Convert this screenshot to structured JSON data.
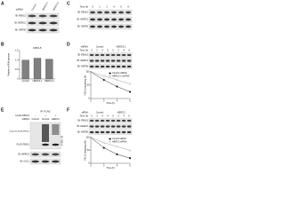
{
  "panel_a": {
    "letter": "A",
    "group_label": "shRNA",
    "lanes": [
      "Control",
      "HERC2-1",
      "HERC2-2"
    ],
    "rows": [
      "IB: FBXL5",
      "IB: HERC2",
      "IB: HSP90"
    ]
  },
  "panel_b": {
    "letter": "B",
    "title": "FBXL5",
    "y_label": "Relative mRNA amount",
    "y_range": [
      0,
      1.5
    ],
    "y_ticks": [
      0,
      0.5,
      {
        "value": 1,
        "label": "1.0"
      },
      1.5
    ],
    "categories": [
      "Control",
      "HERC2-1",
      "HERC2-2"
    ],
    "values": [
      1.0,
      1.1,
      1.05
    ],
    "color": "#808080"
  },
  "panel_c": {
    "letter": "C",
    "group_label": "Time (h)",
    "lanes": [
      "0",
      "1",
      "2",
      "4",
      "6",
      "8"
    ],
    "rows": [
      "IB: FBXL5",
      "IB: HERC2",
      "IB: HSP90"
    ]
  },
  "panel_d": {
    "letter": "D",
    "group_label": "shRNA",
    "groups": [
      "Control",
      "HERC2-1"
    ],
    "time_label": "Time (h)",
    "lanes": [
      "0",
      "2",
      "4",
      "6",
      "0",
      "2",
      "4",
      "6"
    ],
    "rows": [
      "IB: FBXL5",
      "IB: HERC2",
      "IB: HSP90"
    ],
    "graph": {
      "x_label": "Time (h)",
      "y_label": "FBXL5 remaining (%)",
      "x_range": [
        0,
        6
      ],
      "y_range": [
        0,
        100
      ],
      "x_ticks": [
        0,
        2,
        4,
        6
      ],
      "y_ticks": [
        0,
        50,
        100
      ],
      "time": [
        0,
        2,
        4,
        6
      ],
      "series": [
        {
          "name": "Control shRNA",
          "color": "#000000",
          "values": [
            100,
            70,
            45,
            25
          ]
        },
        {
          "name": "HERC2-1 shRNA",
          "color": "#888888",
          "values": [
            100,
            85,
            70,
            55
          ]
        }
      ]
    }
  },
  "panel_e": {
    "letter": "E",
    "header": "IP: FLAG",
    "conditions": [
      {
        "label": "FLAG-FBXL5",
        "values": [
          "−",
          "+",
          "+"
        ]
      },
      {
        "label": "shRNA",
        "values": [
          "Control",
          "Control",
          "HERC2"
        ]
      }
    ],
    "smear_labels": [
      "Ubiquitin-FLAG-FBXL5",
      "FLAG-FBXL5"
    ],
    "smear_blot": "IB: FBXL5",
    "rows": [
      "IB: HERC2",
      "IB: CUL1"
    ]
  },
  "panel_f": {
    "letter": "F",
    "group_label": "siRNA",
    "groups": [
      "Control",
      "HERC2"
    ],
    "time_label": "Time (h)",
    "lanes": [
      "0",
      "2",
      "4",
      "6",
      "0",
      "2",
      "4",
      "6"
    ],
    "rows": [
      "IB: FBXL5",
      "IB: HERC2",
      "IB: HSP90"
    ],
    "graph": {
      "x_label": "Time (h)",
      "y_label": "FBXL5 remaining (%)",
      "x_range": [
        0,
        6
      ],
      "y_range": [
        0,
        100
      ],
      "x_ticks": [
        0,
        2,
        4,
        6
      ],
      "y_ticks": [
        0,
        50,
        100
      ],
      "time": [
        0,
        2,
        4,
        6
      ],
      "series": [
        {
          "name": "Control siRNA",
          "color": "#000000",
          "values": [
            100,
            60,
            35,
            20
          ]
        },
        {
          "name": "HERC2 siRNA",
          "color": "#888888",
          "values": [
            100,
            80,
            65,
            50
          ]
        }
      ]
    }
  }
}
